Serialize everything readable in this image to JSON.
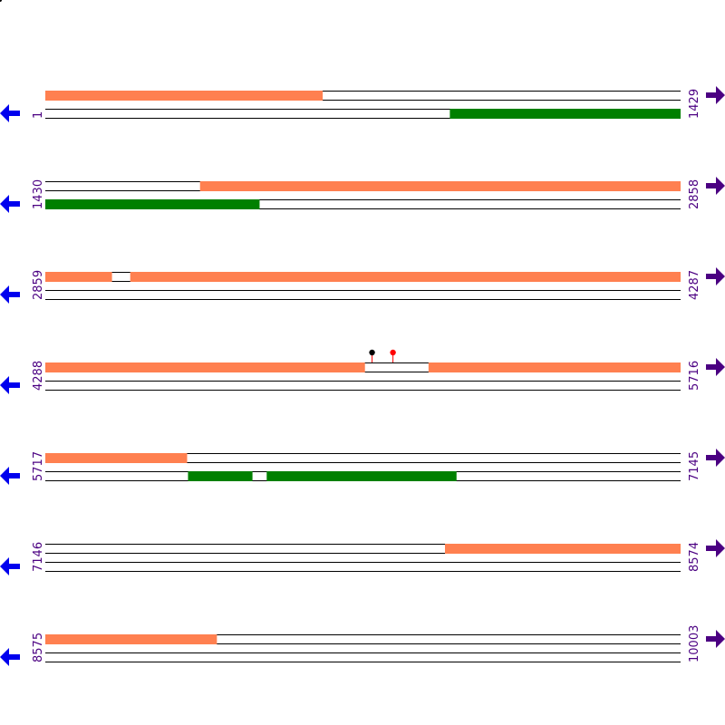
{
  "colors": {
    "forward_feature": "#ff8050",
    "reverse_feature": "#008000",
    "track_line": "#000000",
    "reverse_arrow": "#0000ee",
    "forward_arrow": "#4b0082",
    "coord_text": "#4b0082",
    "marker_black": "#000000",
    "marker_red": "#ff0000"
  },
  "icons": {
    "reverse_strand": "left-arrow-icon",
    "forward_strand": "right-arrow-icon"
  },
  "rows": [
    {
      "start": 1,
      "end": 1429,
      "start_label": "1",
      "end_label": "1429",
      "forward": [
        [
          1,
          624
        ]
      ],
      "reverse": [
        [
          911,
          1429
        ]
      ],
      "markers": []
    },
    {
      "start": 1430,
      "end": 2858,
      "start_label": "1430",
      "end_label": "2858",
      "forward": [
        [
          1778,
          2858
        ]
      ],
      "reverse": [
        [
          1430,
          1911
        ]
      ],
      "markers": []
    },
    {
      "start": 2859,
      "end": 4287,
      "start_label": "2859",
      "end_label": "4287",
      "forward": [
        [
          2859,
          3008
        ],
        [
          3050,
          4287
        ]
      ],
      "reverse": [],
      "markers": []
    },
    {
      "start": 4288,
      "end": 5716,
      "start_label": "4288",
      "end_label": "5716",
      "forward": [
        [
          4288,
          5006
        ],
        [
          5150,
          5716
        ]
      ],
      "reverse": [],
      "markers": [
        {
          "pos": 5023,
          "color": "#000000"
        },
        {
          "pos": 5070,
          "color": "#ff0000"
        }
      ]
    },
    {
      "start": 5717,
      "end": 7145,
      "start_label": "5717",
      "end_label": "7145",
      "forward": [
        [
          5717,
          6035
        ]
      ],
      "reverse": [
        [
          6038,
          6182
        ],
        [
          6215,
          6641
        ]
      ],
      "markers": []
    },
    {
      "start": 7146,
      "end": 8574,
      "start_label": "7146",
      "end_label": "8574",
      "forward": [
        [
          8045,
          8574
        ]
      ],
      "reverse": [],
      "markers": []
    },
    {
      "start": 8575,
      "end": 10003,
      "start_label": "8575",
      "end_label": "10003",
      "forward": [
        [
          8575,
          8960
        ]
      ],
      "reverse": [],
      "markers": []
    }
  ]
}
